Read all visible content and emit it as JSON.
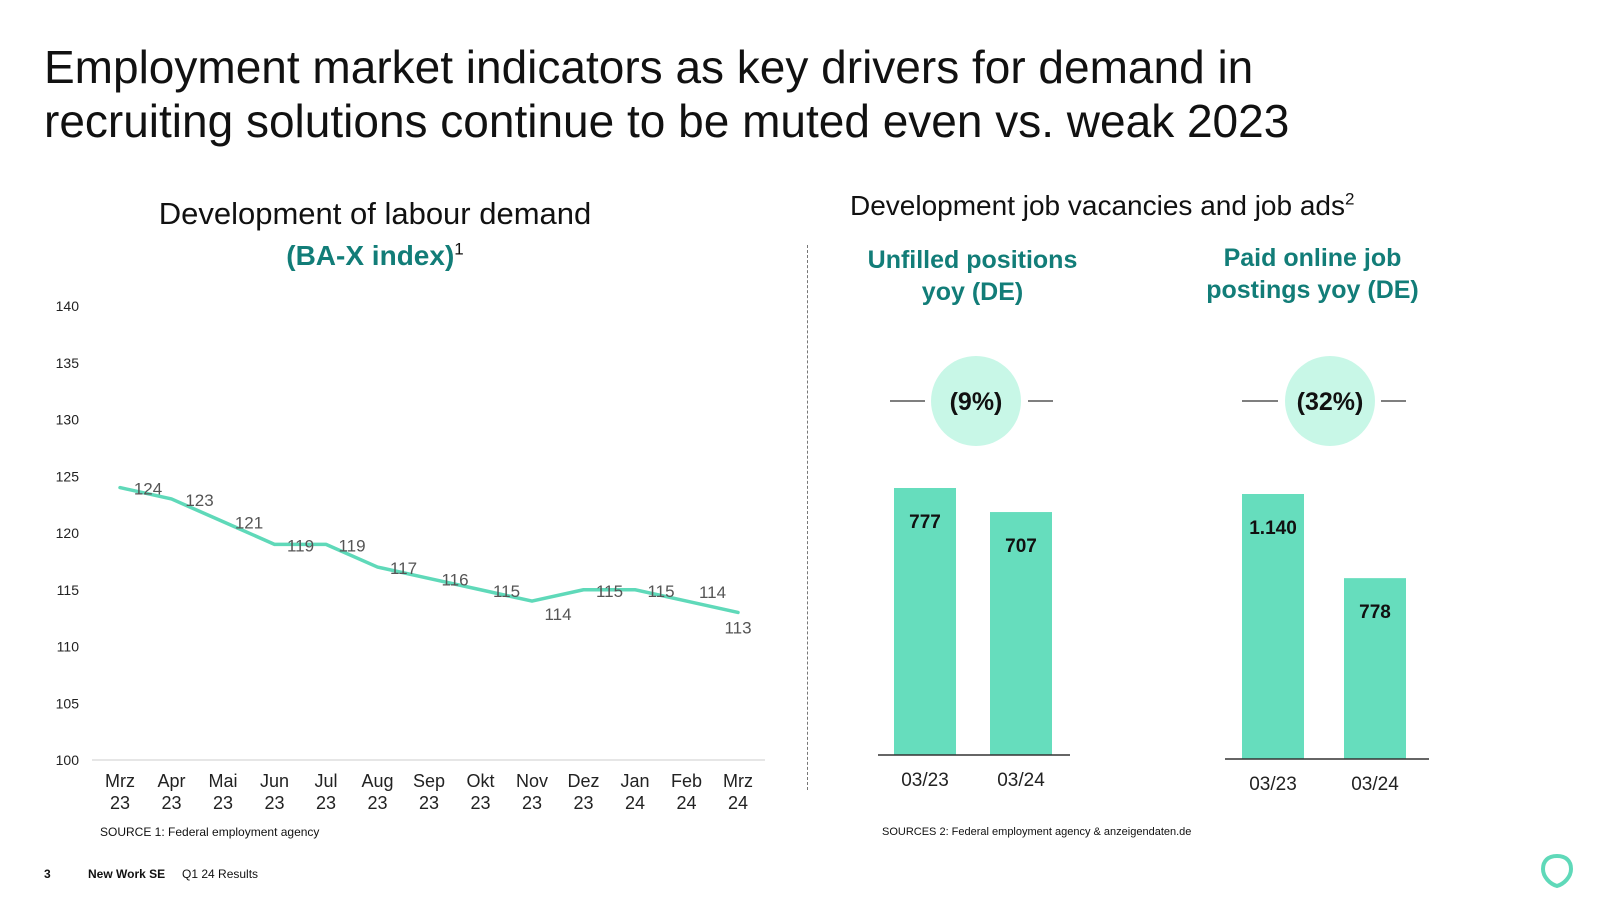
{
  "slide": {
    "title_line1": "Employment market indicators as key drivers for demand in",
    "title_line2": "recruiting solutions continue to be muted even vs. weak 2023",
    "page_number": "3",
    "company": "New Work SE",
    "report": "Q1 24 Results"
  },
  "left_panel": {
    "title": "Development of labour demand",
    "subtitle": "(BA-X index)",
    "footnote_mark": "1",
    "source": "SOURCE 1: Federal employment agency"
  },
  "right_panel": {
    "title": "Development job vacancies and job ads",
    "footnote_mark": "2",
    "col1_title_line1": "Unfilled positions",
    "col1_title_line2": "yoy (DE)",
    "col1_change": "(9%)",
    "col2_title_line1": "Paid online job",
    "col2_title_line2": "postings yoy (DE)",
    "col2_change": "(32%)",
    "source": "SOURCES 2: Federal employment agency & anzeigendaten.de"
  },
  "colors": {
    "accent": "#127d78",
    "line": "#5fd9b9",
    "bar": "#66ddbd",
    "bubble": "#c8f7e7"
  },
  "chart_data": [
    {
      "type": "line",
      "title": "Development of labour demand",
      "subtitle": "(BA-X index)",
      "categories": [
        [
          "Mrz",
          "23"
        ],
        [
          "Apr",
          "23"
        ],
        [
          "Mai",
          "23"
        ],
        [
          "Jun",
          "23"
        ],
        [
          "Jul",
          "23"
        ],
        [
          "Aug",
          "23"
        ],
        [
          "Sep",
          "23"
        ],
        [
          "Okt",
          "23"
        ],
        [
          "Nov",
          "23"
        ],
        [
          "Dez",
          "23"
        ],
        [
          "Jan",
          "24"
        ],
        [
          "Feb",
          "24"
        ],
        [
          "Mrz",
          "24"
        ]
      ],
      "values": [
        124,
        123,
        121,
        119,
        119,
        117,
        116,
        115,
        114,
        115,
        115,
        114,
        113
      ],
      "ylim": [
        100,
        140
      ],
      "yticks": [
        100,
        105,
        110,
        115,
        120,
        125,
        130,
        135,
        140
      ],
      "xlabel": "",
      "ylabel": ""
    },
    {
      "type": "bar",
      "title": "Unfilled positions yoy (DE)",
      "categories": [
        "03/23",
        "03/24"
      ],
      "values": [
        777,
        707
      ],
      "labels": [
        "777",
        "707"
      ]
    },
    {
      "type": "bar",
      "title": "Paid online job postings yoy (DE)",
      "categories": [
        "03/23",
        "03/24"
      ],
      "values": [
        1140,
        778
      ],
      "labels": [
        "1.140",
        "778"
      ]
    }
  ]
}
